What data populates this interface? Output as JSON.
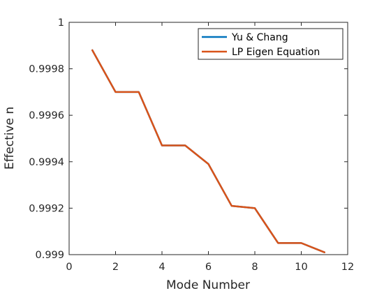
{
  "chart_data": {
    "type": "line",
    "xlabel": "Mode Number",
    "ylabel": "Effective n",
    "xlim": [
      0,
      12
    ],
    "ylim": [
      0.999,
      1
    ],
    "xticks": [
      "0",
      "2",
      "4",
      "6",
      "8",
      "10",
      "12"
    ],
    "yticks": [
      "0.999",
      "0.9992",
      "0.9994",
      "0.9996",
      "0.9998",
      "1"
    ],
    "grid": false,
    "legend_position": "top-right",
    "x": [
      1,
      2,
      3,
      4,
      5,
      6,
      7,
      8,
      9,
      10,
      11
    ],
    "series": [
      {
        "name": "Yu & Chang",
        "color": "#0072BD",
        "values": [
          0.99988,
          0.9997,
          0.9997,
          0.99947,
          0.99947,
          0.99939,
          0.99921,
          0.9992,
          0.99905,
          0.99905,
          0.99901
        ]
      },
      {
        "name": "LP Eigen Equation",
        "color": "#D95319",
        "values": [
          0.99988,
          0.9997,
          0.9997,
          0.99947,
          0.99947,
          0.99939,
          0.99921,
          0.9992,
          0.99905,
          0.99905,
          0.99901
        ]
      }
    ]
  }
}
